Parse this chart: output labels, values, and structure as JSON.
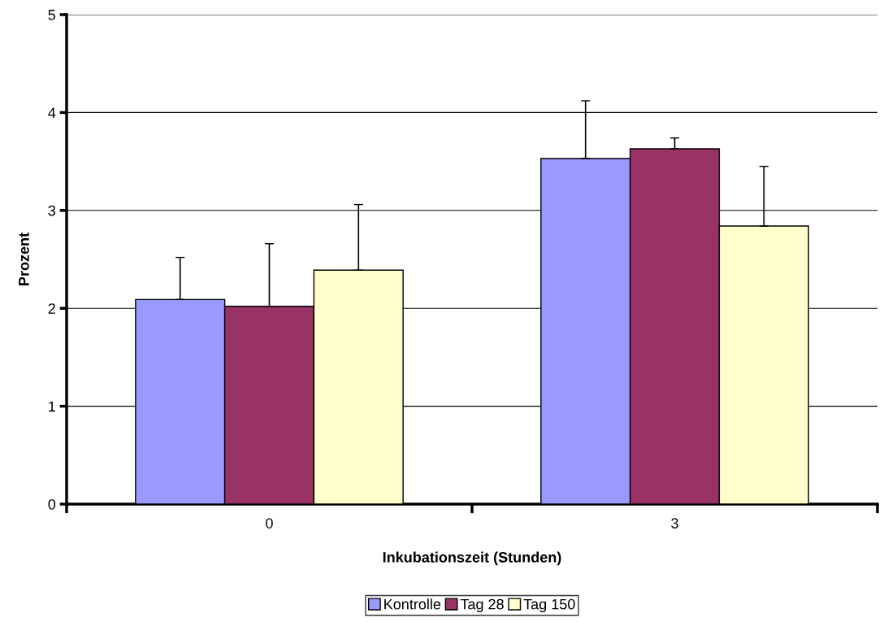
{
  "chart_data": {
    "type": "bar",
    "xlabel": "Inkubationszeit (Stunden)",
    "ylabel": "Prozent",
    "categories": [
      "0",
      "3"
    ],
    "series": [
      {
        "name": "Kontrolle",
        "color": "#9999ff",
        "values": [
          2.09,
          3.53
        ],
        "errors": [
          [
            2.09,
            2.52
          ],
          [
            3.53,
            4.12
          ]
        ]
      },
      {
        "name": "Tag 28",
        "color": "#993366",
        "values": [
          2.02,
          3.63
        ],
        "errors": [
          [
            2.02,
            2.66
          ],
          [
            3.63,
            3.74
          ]
        ]
      },
      {
        "name": "Tag 150",
        "color": "#ffffcc",
        "values": [
          2.39,
          2.84
        ],
        "errors": [
          [
            2.39,
            3.06
          ],
          [
            2.84,
            3.45
          ]
        ]
      }
    ],
    "ylim": [
      0,
      5
    ],
    "yticks": [
      0,
      1,
      2,
      3,
      4,
      5
    ],
    "grid": "y",
    "legend": "bottom"
  }
}
